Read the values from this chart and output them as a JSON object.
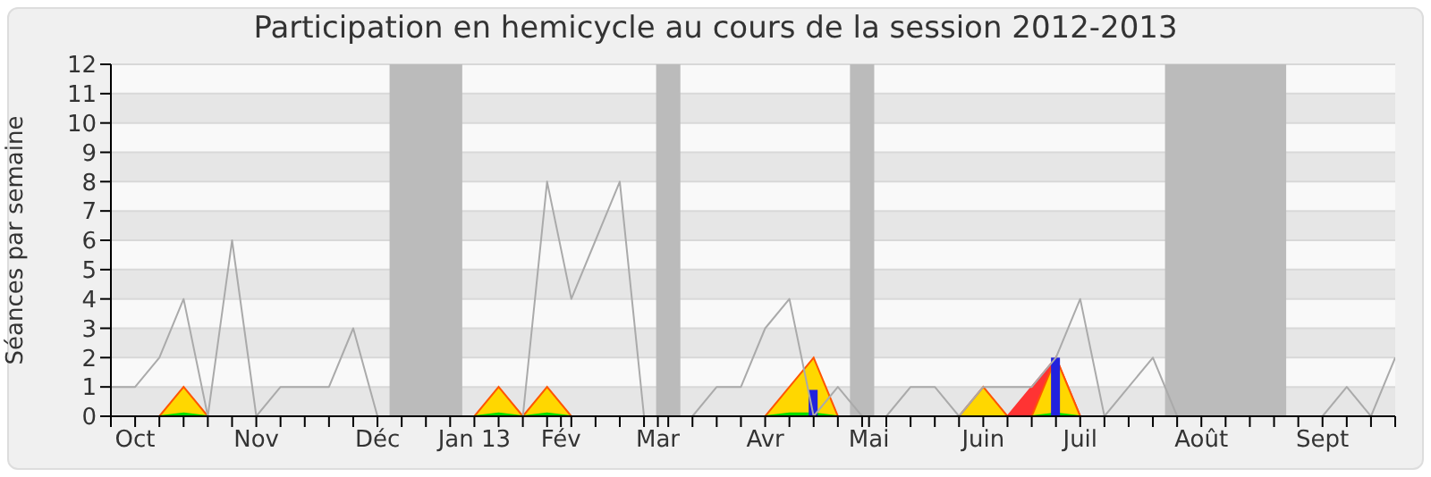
{
  "chart_data": {
    "type": "area",
    "title": "Participation en hemicycle au cours de la session 2012-2013",
    "ylabel": "Séances par semaine",
    "x": [
      "2012-09-24",
      "2012-10-01",
      "2012-10-08",
      "2012-10-15",
      "2012-10-22",
      "2012-10-29",
      "2012-11-05",
      "2012-11-12",
      "2012-11-19",
      "2012-11-26",
      "2012-12-03",
      "2012-12-10",
      "2012-12-17",
      "2012-12-24",
      "2012-12-31",
      "2013-01-07",
      "2013-01-14",
      "2013-01-21",
      "2013-01-28",
      "2013-02-04",
      "2013-02-11",
      "2013-02-18",
      "2013-02-25",
      "2013-03-04",
      "2013-03-11",
      "2013-03-18",
      "2013-03-25",
      "2013-04-01",
      "2013-04-08",
      "2013-04-15",
      "2013-04-22",
      "2013-04-29",
      "2013-05-06",
      "2013-05-13",
      "2013-05-20",
      "2013-05-27",
      "2013-06-03",
      "2013-06-10",
      "2013-06-17",
      "2013-06-24",
      "2013-07-01",
      "2013-07-08",
      "2013-07-15",
      "2013-07-22",
      "2013-07-29",
      "2013-08-05",
      "2013-08-12",
      "2013-08-19",
      "2013-08-26",
      "2013-09-02",
      "2013-09-09",
      "2013-09-16",
      "2013-09-23",
      "2013-09-30"
    ],
    "xlim": [
      "2012-09-24",
      "2013-09-30"
    ],
    "xticks": [
      {
        "value": "2012-09-24",
        "label": null
      },
      {
        "value": "2012-10-01",
        "label": "Oct"
      },
      {
        "value": "2012-10-08",
        "label": null
      },
      {
        "value": "2012-10-15",
        "label": null
      },
      {
        "value": "2012-10-22",
        "label": null
      },
      {
        "value": "2012-10-29",
        "label": null
      },
      {
        "value": "2012-11-05",
        "label": "Nov"
      },
      {
        "value": "2012-11-12",
        "label": null
      },
      {
        "value": "2012-11-19",
        "label": null
      },
      {
        "value": "2012-11-26",
        "label": null
      },
      {
        "value": "2012-12-03",
        "label": null
      },
      {
        "value": "2012-12-10",
        "label": "Déc"
      },
      {
        "value": "2012-12-17",
        "label": null
      },
      {
        "value": "2012-12-24",
        "label": null
      },
      {
        "value": "2012-12-31",
        "label": null
      },
      {
        "value": "2013-01-07",
        "label": "Jan 13"
      },
      {
        "value": "2013-01-14",
        "label": null
      },
      {
        "value": "2013-01-21",
        "label": null
      },
      {
        "value": "2013-01-28",
        "label": null
      },
      {
        "value": "2013-02-01",
        "label": "Fév"
      },
      {
        "value": "2013-02-04",
        "label": null
      },
      {
        "value": "2013-02-11",
        "label": null
      },
      {
        "value": "2013-02-18",
        "label": null
      },
      {
        "value": "2013-02-25",
        "label": null
      },
      {
        "value": "2013-03-01",
        "label": "Mar"
      },
      {
        "value": "2013-03-04",
        "label": null
      },
      {
        "value": "2013-03-11",
        "label": null
      },
      {
        "value": "2013-03-18",
        "label": null
      },
      {
        "value": "2013-03-25",
        "label": null
      },
      {
        "value": "2013-04-01",
        "label": "Avr"
      },
      {
        "value": "2013-04-08",
        "label": null
      },
      {
        "value": "2013-04-15",
        "label": null
      },
      {
        "value": "2013-04-22",
        "label": null
      },
      {
        "value": "2013-04-29",
        "label": null
      },
      {
        "value": "2013-05-01",
        "label": "Mai"
      },
      {
        "value": "2013-05-06",
        "label": null
      },
      {
        "value": "2013-05-13",
        "label": null
      },
      {
        "value": "2013-05-20",
        "label": null
      },
      {
        "value": "2013-05-27",
        "label": null
      },
      {
        "value": "2013-06-03",
        "label": "Juin"
      },
      {
        "value": "2013-06-10",
        "label": null
      },
      {
        "value": "2013-06-17",
        "label": null
      },
      {
        "value": "2013-06-24",
        "label": null
      },
      {
        "value": "2013-07-01",
        "label": "Juil"
      },
      {
        "value": "2013-07-08",
        "label": null
      },
      {
        "value": "2013-07-15",
        "label": null
      },
      {
        "value": "2013-07-22",
        "label": null
      },
      {
        "value": "2013-07-29",
        "label": null
      },
      {
        "value": "2013-08-05",
        "label": "Août"
      },
      {
        "value": "2013-08-12",
        "label": null
      },
      {
        "value": "2013-08-19",
        "label": null
      },
      {
        "value": "2013-08-26",
        "label": null
      },
      {
        "value": "2013-09-02",
        "label": null
      },
      {
        "value": "2013-09-09",
        "label": "Sept"
      },
      {
        "value": "2013-09-16",
        "label": null
      },
      {
        "value": "2013-09-23",
        "label": null
      },
      {
        "value": "2013-09-30",
        "label": null
      }
    ],
    "ylim": [
      0,
      12
    ],
    "yticks": [
      0,
      1,
      2,
      3,
      4,
      5,
      6,
      7,
      8,
      9,
      10,
      11,
      12
    ],
    "grid": "y",
    "legend": false,
    "bands": [
      {
        "axis": "x",
        "from": "2012-12-13T12:00",
        "to": "2013-01-03T12:00",
        "color": "#bbbbbb"
      },
      {
        "axis": "x",
        "from": "2013-02-28T12:00",
        "to": "2013-03-07T12:00",
        "color": "#bbbbbb"
      },
      {
        "axis": "x",
        "from": "2013-04-25T12:00",
        "to": "2013-05-02T12:00",
        "color": "#bbbbbb"
      },
      {
        "axis": "x",
        "from": "2013-07-25T12:00",
        "to": "2013-08-29T12:00",
        "color": "#bbbbbb"
      }
    ],
    "series": [
      {
        "type": "line",
        "color": "#aaaaaa",
        "values": [
          1,
          1,
          2,
          4,
          0,
          6,
          0,
          1,
          1,
          1,
          3,
          0,
          null,
          null,
          null,
          0,
          0,
          0,
          8,
          4,
          6,
          8,
          0,
          null,
          0,
          1,
          1,
          3,
          4,
          0,
          1,
          0,
          0,
          1,
          1,
          0,
          1,
          1,
          1,
          2,
          4,
          0,
          1,
          2,
          0,
          null,
          null,
          null,
          null,
          0,
          0,
          1,
          0,
          2
        ]
      },
      {
        "color": "#ff3333",
        "values": [
          null,
          null,
          null,
          null,
          null,
          null,
          null,
          null,
          null,
          null,
          null,
          null,
          null,
          null,
          null,
          null,
          null,
          null,
          null,
          null,
          null,
          null,
          null,
          null,
          null,
          null,
          null,
          null,
          null,
          null,
          null,
          null,
          null,
          null,
          null,
          null,
          null,
          0,
          1,
          2,
          0,
          null,
          null,
          null,
          null,
          null,
          null,
          null,
          null,
          null,
          null,
          null,
          null,
          null
        ]
      },
      {
        "color": "#ffd700",
        "values": [
          null,
          null,
          0,
          1,
          0,
          null,
          null,
          null,
          null,
          null,
          null,
          null,
          null,
          null,
          null,
          0,
          1,
          0,
          1,
          0,
          null,
          null,
          null,
          null,
          null,
          null,
          null,
          0,
          1,
          2,
          0,
          null,
          null,
          null,
          null,
          0,
          1,
          0,
          0,
          2,
          0,
          null,
          null,
          null,
          null,
          null,
          null,
          null,
          null,
          null,
          null,
          null,
          null,
          null
        ]
      },
      {
        "color": "#00dd00",
        "values": [
          null,
          null,
          0,
          0.1,
          0,
          null,
          null,
          null,
          null,
          null,
          null,
          null,
          null,
          null,
          null,
          0,
          0.1,
          0,
          0.1,
          0,
          null,
          null,
          null,
          null,
          null,
          null,
          null,
          0,
          0.1,
          0.1,
          0,
          null,
          null,
          null,
          null,
          null,
          null,
          null,
          0,
          0.1,
          0,
          null,
          null,
          null,
          null,
          null,
          null,
          null,
          null,
          null,
          null,
          null,
          null,
          null
        ]
      },
      {
        "type": "bar",
        "color": "#2222dd",
        "values": [
          null,
          null,
          null,
          null,
          null,
          null,
          null,
          null,
          null,
          null,
          null,
          null,
          null,
          null,
          null,
          null,
          null,
          null,
          null,
          null,
          null,
          null,
          null,
          null,
          null,
          null,
          null,
          null,
          null,
          0.9,
          null,
          null,
          null,
          null,
          null,
          null,
          null,
          null,
          null,
          2,
          null,
          null,
          null,
          null,
          null,
          null,
          null,
          null,
          null,
          null,
          null,
          null,
          null,
          null
        ]
      }
    ]
  }
}
